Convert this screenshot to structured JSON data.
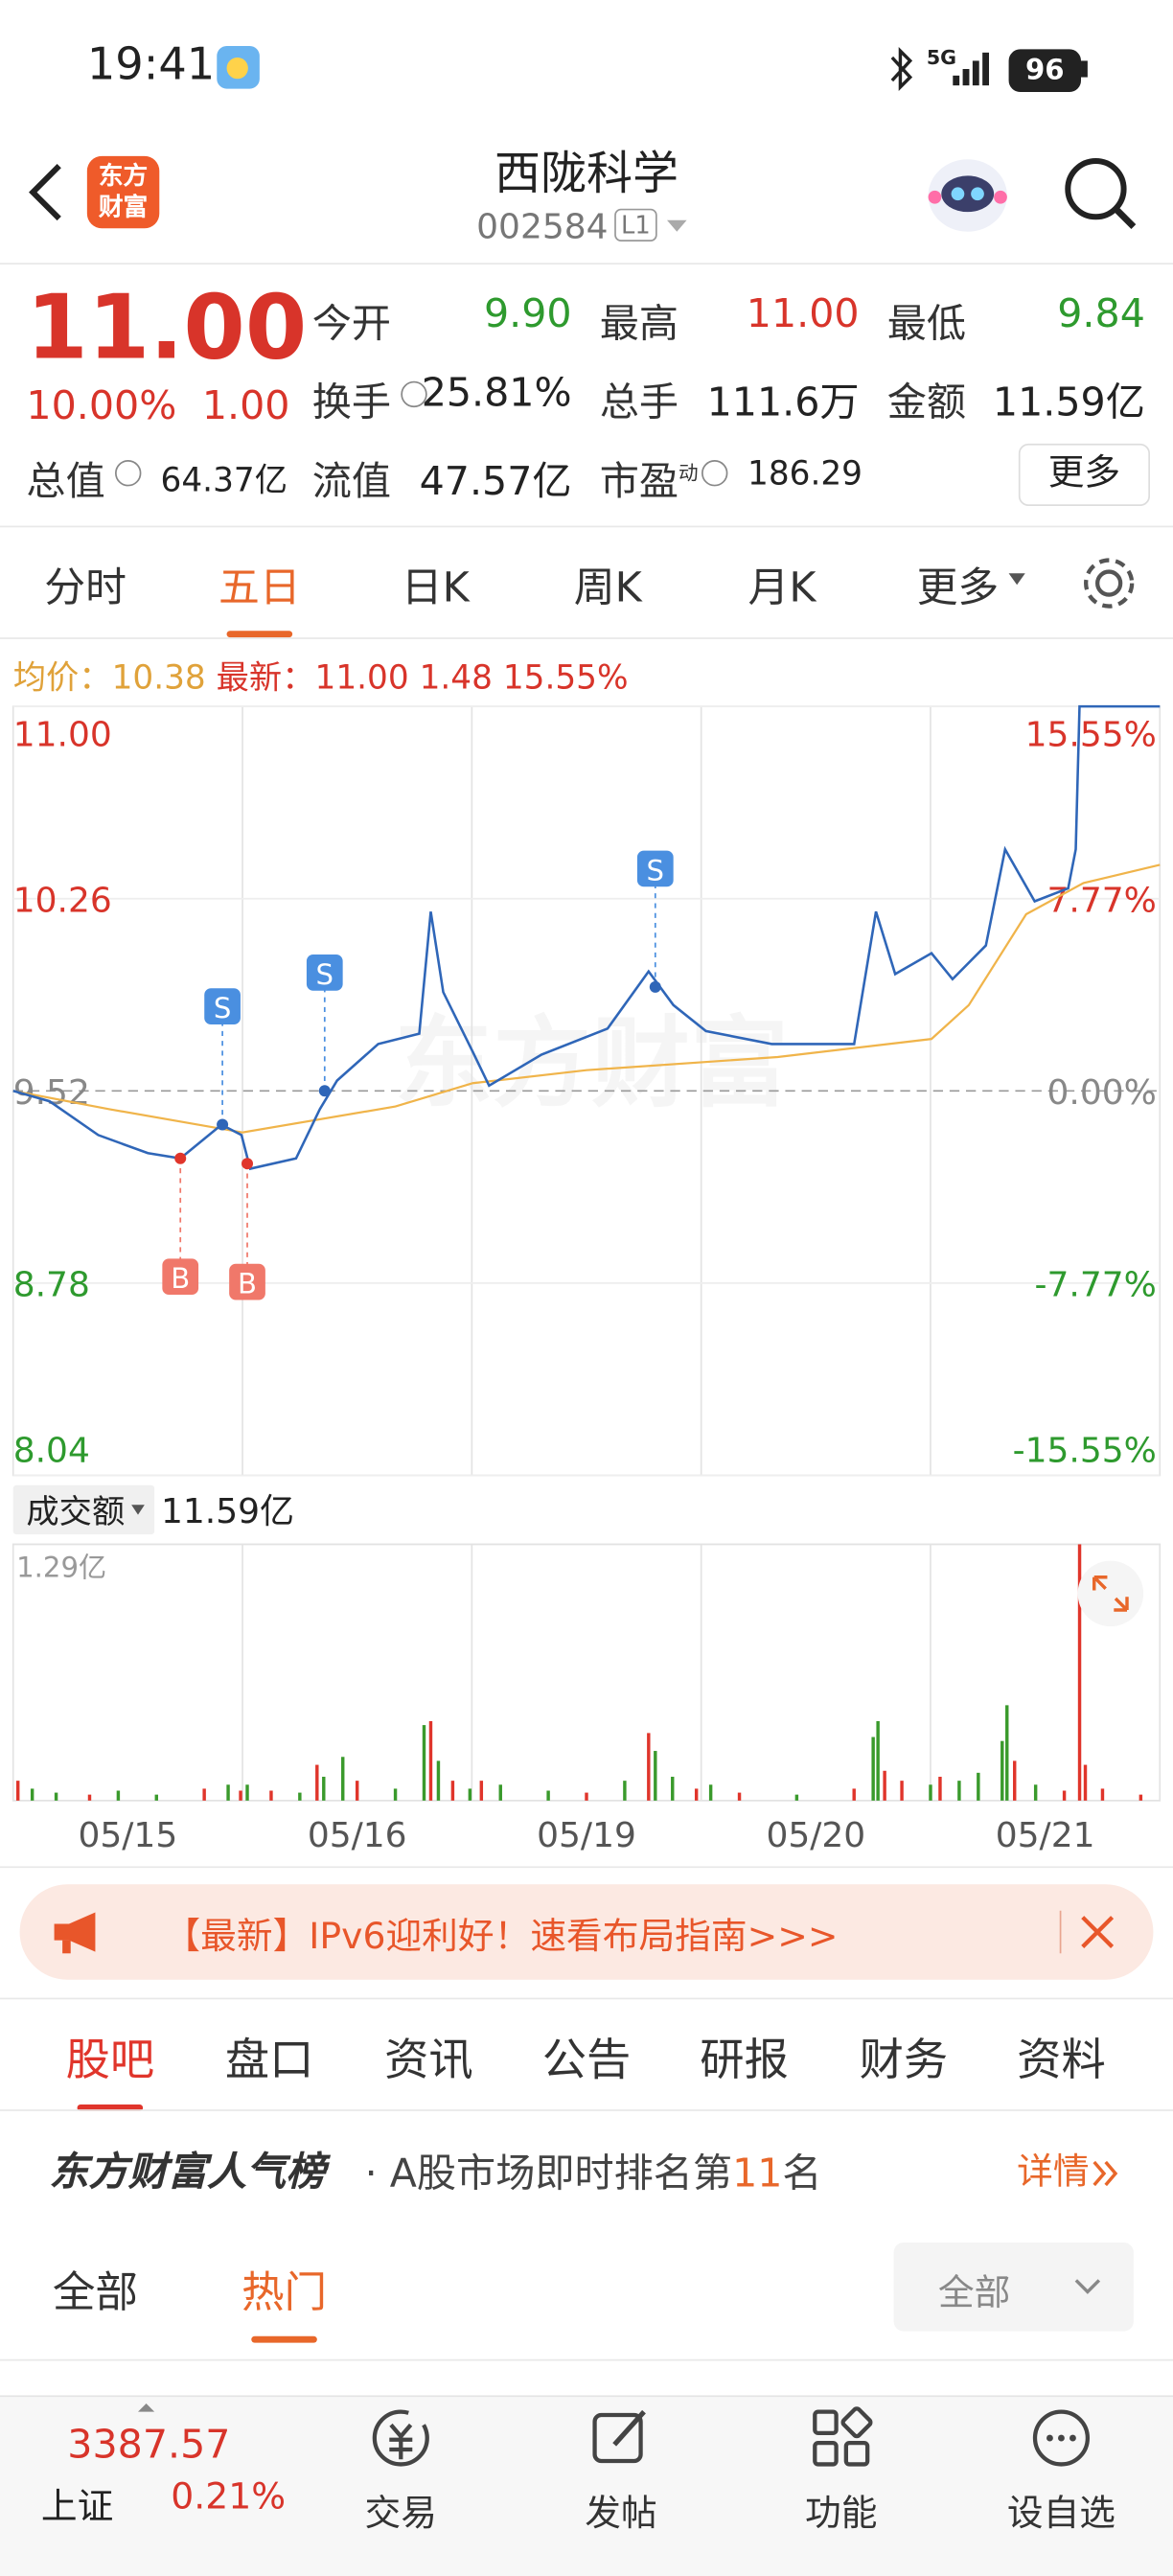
{
  "status_bar": {
    "time": "19:41",
    "network": "5G",
    "battery": "96"
  },
  "header": {
    "logo": [
      "东方",
      "财富"
    ],
    "title": "西陇科学",
    "code": "002584",
    "level": "L1"
  },
  "quote": {
    "price": "11.00",
    "change_pct": "10.00%",
    "change": "1.00",
    "fields": [
      {
        "label": "今开",
        "value": "9.90",
        "color": "#2e9a2e"
      },
      {
        "label": "最高",
        "value": "11.00",
        "color": "#d8342a"
      },
      {
        "label": "最低",
        "value": "9.84",
        "color": "#2e9a2e"
      },
      {
        "label": "换手",
        "value": "25.81%"
      },
      {
        "label": "总手",
        "value": "111.6万"
      },
      {
        "label": "金额",
        "value": "11.59亿"
      },
      {
        "label": "总值",
        "value": "64.37亿"
      },
      {
        "label": "流值",
        "value": "47.57亿"
      },
      {
        "label": "市盈",
        "sup": "动",
        "value": "186.29"
      }
    ],
    "more": "更多"
  },
  "chart_tabs": {
    "items": [
      "分时",
      "五日",
      "日K",
      "周K",
      "月K",
      "更多"
    ],
    "active": 1
  },
  "summary": {
    "avg_label": "均价：",
    "avg": "10.38",
    "latest_label": "最新：",
    "latest": "11.00",
    "change": "1.48",
    "change_pct": "15.55%"
  },
  "watermark": "东方财富",
  "chart_data": [
    {
      "type": "line",
      "xlim": [
        0,
        1200
      ],
      "ylim": [
        8.04,
        11
      ],
      "yticks": [
        {
          "value": 11,
          "label": "11.00"
        },
        10.26,
        9.52,
        8.78,
        8.04
      ],
      "y2lim": [
        -15.55,
        15.55
      ],
      "y2ticks": [
        {
          "value": 15.55,
          "label": "15.55%"
        },
        {
          "value": 7.77,
          "label": "7.77%"
        },
        {
          "value": 0,
          "label": "0.00%"
        },
        {
          "value": -7.77,
          "label": "-7.77%"
        },
        {
          "value": -15.55,
          "label": "-15.55%"
        }
      ],
      "series": [
        {
          "color": "#2f66b8",
          "x": [
            0,
            38,
            89,
            141,
            175,
            218,
            239,
            248,
            296,
            321,
            339,
            382,
            425,
            437,
            450,
            481,
            498,
            553,
            622,
            665,
            691,
            725,
            794,
            880,
            903,
            923,
            961,
            983,
            1018,
            1038,
            1069,
            1104,
            1112,
            1116,
            1200
          ],
          "values": [
            9.52,
            9.48,
            9.35,
            9.28,
            9.26,
            9.39,
            9.35,
            9.22,
            9.26,
            9.45,
            9.56,
            9.7,
            9.74,
            10.21,
            9.9,
            9.67,
            9.54,
            9.66,
            9.76,
            9.98,
            9.85,
            9.75,
            9.7,
            9.7,
            10.21,
            9.97,
            10.05,
            9.95,
            10.08,
            10.45,
            10.25,
            10.3,
            10.45,
            11,
            11
          ]
        },
        {
          "color": "#f0b44a",
          "x": [
            0,
            100,
            240,
            400,
            481,
            600,
            800,
            961,
            1000,
            1060,
            1120,
            1200
          ],
          "values": [
            9.52,
            9.45,
            9.36,
            9.46,
            9.55,
            9.6,
            9.65,
            9.72,
            9.85,
            10.2,
            10.32,
            10.39
          ]
        }
      ],
      "markers": [
        {
          "label": "S",
          "x": 219,
          "value": 9.39
        },
        {
          "label": "S",
          "x": 326,
          "value": 9.52
        },
        {
          "label": "S",
          "x": 672,
          "value": 9.92
        },
        {
          "label": "B",
          "x": 175,
          "value": 9.26
        },
        {
          "label": "B",
          "x": 245,
          "value": 9.24
        }
      ]
    },
    {
      "type": "bar",
      "label": "成交额",
      "total": "11.59亿",
      "xlim": [
        0,
        1200
      ],
      "xticks": [
        {
          "value": 120,
          "label": "05/15"
        },
        {
          "value": 360,
          "label": "05/16"
        },
        {
          "value": 600,
          "label": "05/19"
        },
        {
          "value": 840,
          "label": "05/20"
        },
        {
          "value": 1080,
          "label": "05/21"
        }
      ],
      "ylim": [
        0,
        1.29
      ],
      "yticks": [
        {
          "value": 1.29,
          "label": "1.29亿"
        }
      ],
      "x": [
        5,
        20,
        45,
        80,
        110,
        150,
        200,
        225,
        238,
        245,
        270,
        300,
        318,
        325,
        345,
        360,
        400,
        430,
        437,
        445,
        460,
        478,
        490,
        510,
        560,
        600,
        640,
        665,
        672,
        690,
        715,
        730,
        760,
        820,
        880,
        900,
        905,
        912,
        930,
        960,
        970,
        990,
        1010,
        1035,
        1040,
        1048,
        1070,
        1100,
        1116,
        1122,
        1140,
        1180
      ],
      "values": [
        0.1,
        0.06,
        0.04,
        0.03,
        0.05,
        0.03,
        0.06,
        0.08,
        0.05,
        0.08,
        0.05,
        0.04,
        0.18,
        0.12,
        0.22,
        0.1,
        0.06,
        0.38,
        0.4,
        0.2,
        0.1,
        0.06,
        0.1,
        0.08,
        0.05,
        0.04,
        0.1,
        0.34,
        0.25,
        0.12,
        0.06,
        0.08,
        0.04,
        0.03,
        0.06,
        0.32,
        0.4,
        0.15,
        0.1,
        0.08,
        0.12,
        0.1,
        0.14,
        0.3,
        0.48,
        0.2,
        0.08,
        0.05,
        1.29,
        0.18,
        0.06,
        0.03
      ],
      "colors": [
        "#e0352b",
        "#3a9a2c",
        "#3a9a2c",
        "#e0352b",
        "#3a9a2c",
        "#3a9a2c",
        "#e0352b",
        "#3a9a2c",
        "#e0352b",
        "#3a9a2c",
        "#e0352b",
        "#3a9a2c",
        "#e0352b",
        "#3a9a2c",
        "#3a9a2c",
        "#e0352b",
        "#3a9a2c",
        "#3a9a2c",
        "#e0352b",
        "#3a9a2c",
        "#e0352b",
        "#3a9a2c",
        "#e0352b",
        "#3a9a2c",
        "#3a9a2c",
        "#e0352b",
        "#3a9a2c",
        "#e0352b",
        "#3a9a2c",
        "#3a9a2c",
        "#e0352b",
        "#3a9a2c",
        "#e0352b",
        "#3a9a2c",
        "#e0352b",
        "#3a9a2c",
        "#3a9a2c",
        "#e0352b",
        "#e0352b",
        "#3a9a2c",
        "#e0352b",
        "#3a9a2c",
        "#3a9a2c",
        "#3a9a2c",
        "#3a9a2c",
        "#e0352b",
        "#3a9a2c",
        "#e0352b",
        "#e0352b",
        "#e0352b",
        "#e0352b",
        "#e0352b"
      ]
    }
  ],
  "banner": "【最新】IPv6迎利好！速看布局指南>>>",
  "tabs": {
    "items": [
      "股吧",
      "盘口",
      "资讯",
      "公告",
      "研报",
      "财务",
      "资料"
    ],
    "active": 0
  },
  "ranking": {
    "brand": "东方财富人气榜",
    "separator": "·",
    "text_before": "A股市场即时排名第",
    "rank": "11",
    "text_after": "名",
    "link": "详情"
  },
  "filter": {
    "items": [
      "全部",
      "热门"
    ],
    "active": 1,
    "dropdown": "全部"
  },
  "bottom_nav": {
    "index": {
      "value": "3387.57",
      "name": "上证",
      "change": "0.21%"
    },
    "items": [
      "交易",
      "发帖",
      "功能",
      "设自选"
    ]
  }
}
